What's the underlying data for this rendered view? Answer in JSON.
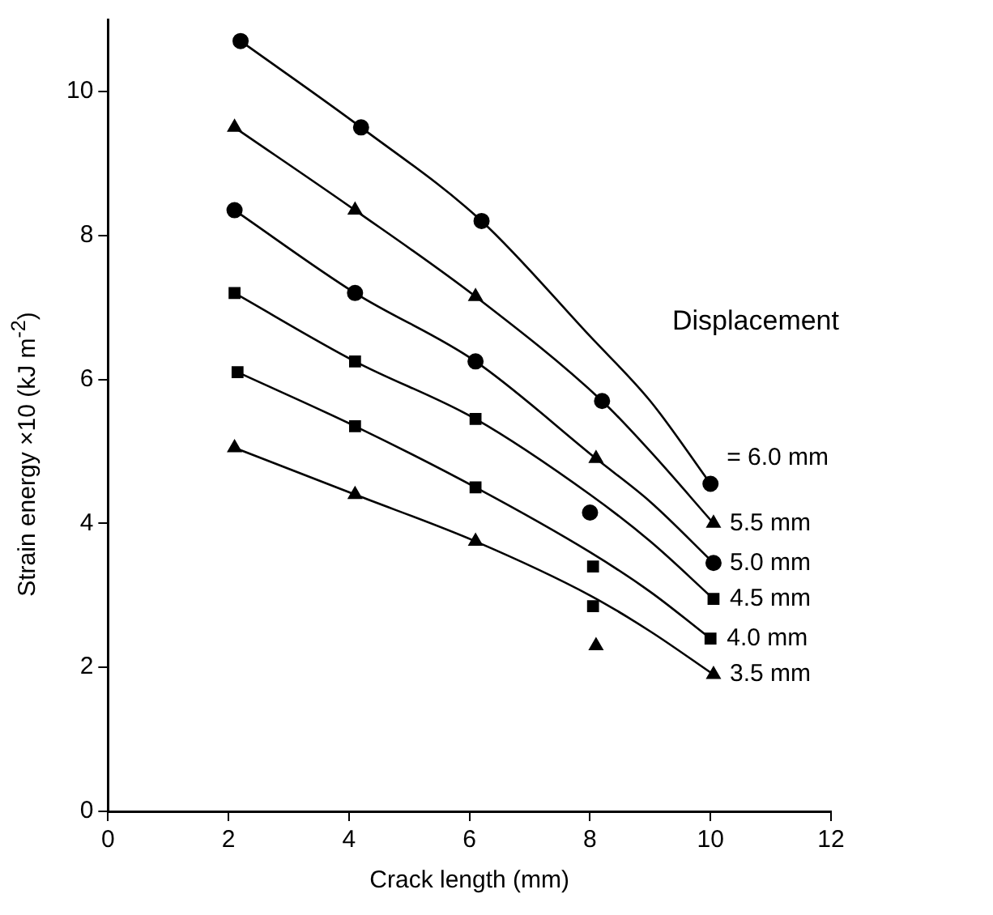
{
  "chart_data": {
    "type": "scatter",
    "xlabel": "Crack length (mm)",
    "ylabel": "Strain energy ×10 (kJ m$^{-2}$)",
    "xlim": [
      0,
      12
    ],
    "xticks": [
      0,
      2,
      4,
      6,
      8,
      10,
      12
    ],
    "ylim": [
      0,
      11
    ],
    "yticks": [
      0,
      2,
      4,
      6,
      8,
      10
    ],
    "grid": false,
    "legend": false,
    "annotations": [
      "Displacement"
    ],
    "series": [
      {
        "name": "= 6.0 mm",
        "type": "scatter",
        "marker": "circle",
        "color": "#000000",
        "x": [
          2.2,
          4.2,
          6.2,
          8.2,
          10
        ],
        "values": [
          10.7,
          9.5,
          8.2,
          5.7,
          4.55
        ]
      },
      {
        "name": "5.5 mm",
        "type": "scatter",
        "marker": "triangle",
        "color": "#000000",
        "x": [
          2.1,
          4.1,
          6.1,
          8.1,
          10.05
        ],
        "values": [
          9.5,
          8.35,
          7.15,
          4.9,
          4.0
        ]
      },
      {
        "name": "5.0 mm",
        "type": "scatter",
        "marker": "circle",
        "color": "#000000",
        "x": [
          2.1,
          4.1,
          6.1,
          8,
          10.05
        ],
        "values": [
          8.35,
          7.2,
          6.25,
          4.15,
          3.45
        ]
      },
      {
        "name": "4.5 mm",
        "type": "scatter",
        "marker": "square",
        "color": "#000000",
        "x": [
          2.1,
          4.1,
          6.1,
          8.05,
          10.05
        ],
        "values": [
          7.2,
          6.25,
          5.45,
          3.4,
          2.95
        ]
      },
      {
        "name": "4.0 mm",
        "type": "scatter",
        "marker": "square",
        "color": "#000000",
        "x": [
          2.15,
          4.1,
          6.1,
          8.05,
          10
        ],
        "values": [
          6.1,
          5.35,
          4.5,
          2.85,
          2.4
        ]
      },
      {
        "name": "3.5 mm",
        "type": "scatter",
        "marker": "triangle",
        "color": "#000000",
        "x": [
          2.1,
          4.1,
          6.1,
          8.1,
          10.05
        ],
        "values": [
          5.05,
          4.4,
          3.75,
          2.3,
          1.9
        ]
      },
      {
        "type": "line",
        "marker": "none",
        "color": "#000000",
        "x": [
          2.2,
          4.2,
          6.2,
          8,
          9,
          10
        ],
        "values": [
          10.7,
          9.5,
          8.2,
          6.6,
          5.7,
          4.55
        ]
      },
      {
        "type": "line",
        "marker": "none",
        "color": "#000000",
        "x": [
          2.1,
          4.1,
          6.1,
          8.2,
          9,
          10.05
        ],
        "values": [
          9.5,
          8.35,
          7.15,
          5.7,
          5.0,
          4.0
        ]
      },
      {
        "type": "line",
        "marker": "none",
        "color": "#000000",
        "x": [
          2.1,
          4.1,
          6.1,
          8.1,
          9,
          10.05
        ],
        "values": [
          8.35,
          7.2,
          6.25,
          4.9,
          4.3,
          3.45
        ]
      },
      {
        "type": "line",
        "marker": "none",
        "color": "#000000",
        "x": [
          2.1,
          4.1,
          6.1,
          8,
          9,
          10.05
        ],
        "values": [
          7.2,
          6.25,
          5.45,
          4.4,
          3.75,
          2.95
        ]
      },
      {
        "type": "line",
        "marker": "none",
        "color": "#000000",
        "x": [
          2.15,
          4.1,
          6.1,
          8,
          9,
          10
        ],
        "values": [
          6.1,
          5.35,
          4.5,
          3.6,
          3.05,
          2.4
        ]
      },
      {
        "type": "line",
        "marker": "none",
        "color": "#000000",
        "x": [
          2.1,
          4.1,
          6.1,
          8,
          9,
          10.05
        ],
        "values": [
          5.05,
          4.4,
          3.75,
          3.0,
          2.5,
          1.9
        ]
      }
    ]
  }
}
